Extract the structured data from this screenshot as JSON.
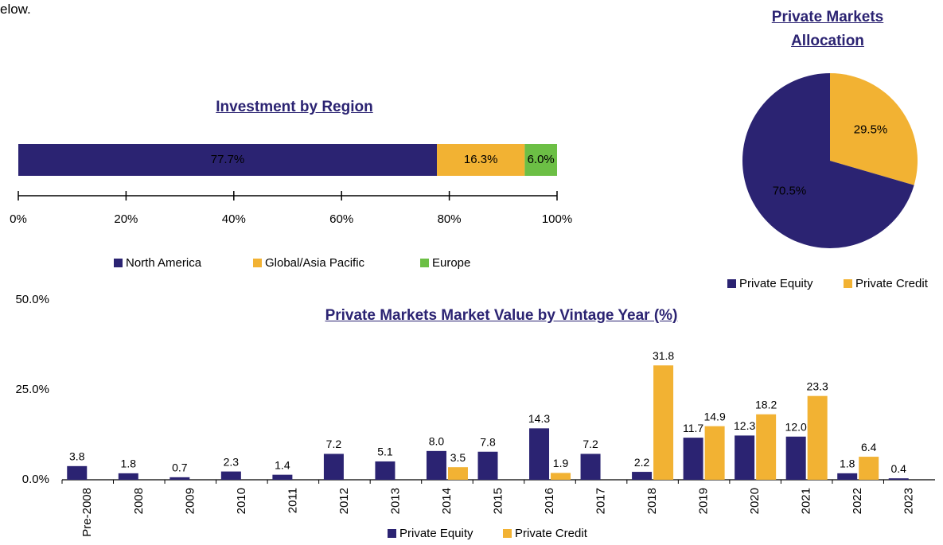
{
  "header_text": "elow.",
  "chart_data": [
    {
      "type": "bar",
      "orientation": "horizontal",
      "stacked": true,
      "title": "Investment by Region",
      "categories": [
        null
      ],
      "series": [
        {
          "name": "North America",
          "color": "#2b2372",
          "values": [
            77.7
          ],
          "value_labels": [
            "77.7%"
          ]
        },
        {
          "name": "Global/Asia Pacific",
          "color": "#f2b233",
          "values": [
            16.3
          ],
          "value_labels": [
            "16.3%"
          ]
        },
        {
          "name": "Europe",
          "color": "#6cbf45",
          "values": [
            6.0
          ],
          "value_labels": [
            "6.0%"
          ]
        }
      ],
      "xlim": [
        0,
        100
      ],
      "xticks": [
        {
          "value": 0,
          "label": "0%"
        },
        {
          "value": 20,
          "label": "20%"
        },
        {
          "value": 40,
          "label": "40%"
        },
        {
          "value": 60,
          "label": "60%"
        },
        {
          "value": 80,
          "label": "80%"
        },
        {
          "value": 100,
          "label": "100%"
        }
      ],
      "legend": "bottom"
    },
    {
      "type": "pie",
      "title": "Private Markets Allocation",
      "categories": [
        "Private Equity",
        "Private Credit"
      ],
      "values": [
        70.5,
        29.5
      ],
      "value_labels": [
        "70.5%",
        "29.5%"
      ],
      "colors": [
        "#2b2372",
        "#f2b233"
      ],
      "legend": "bottom"
    },
    {
      "type": "bar",
      "title": "Private Markets Market Value by Vintage Year (%)",
      "categories": [
        "Pre-2008",
        "2008",
        "2009",
        "2010",
        "2011",
        "2012",
        "2013",
        "2014",
        "2015",
        "2016",
        "2017",
        "2018",
        "2019",
        "2020",
        "2021",
        "2022",
        "2023"
      ],
      "series": [
        {
          "name": "Private Equity",
          "color": "#2b2372",
          "values": [
            3.8,
            1.8,
            0.7,
            2.3,
            1.4,
            7.2,
            5.1,
            8.0,
            7.8,
            14.3,
            7.2,
            2.2,
            11.7,
            12.3,
            12.0,
            1.8,
            0.4
          ],
          "value_labels": [
            "3.8",
            "1.8",
            "0.7",
            "2.3",
            "1.4",
            "7.2",
            "5.1",
            "8.0",
            "7.8",
            "14.3",
            "7.2",
            "2.2",
            "11.7",
            "12.3",
            "12.0",
            "1.8",
            "0.4"
          ]
        },
        {
          "name": "Private Credit",
          "color": "#f2b233",
          "values": [
            null,
            null,
            null,
            null,
            null,
            null,
            null,
            3.5,
            null,
            1.9,
            null,
            31.8,
            14.9,
            18.2,
            23.3,
            6.4,
            null
          ],
          "value_labels": [
            null,
            null,
            null,
            null,
            null,
            null,
            null,
            "3.5",
            null,
            "1.9",
            null,
            "31.8",
            "14.9",
            "18.2",
            "23.3",
            "6.4",
            null
          ]
        }
      ],
      "ylim": [
        0,
        50
      ],
      "yticks": [
        {
          "value": 0,
          "label": "0.0%"
        },
        {
          "value": 25,
          "label": "25.0%"
        },
        {
          "value": 50,
          "label": "50.0%"
        }
      ],
      "legend": "bottom"
    }
  ]
}
